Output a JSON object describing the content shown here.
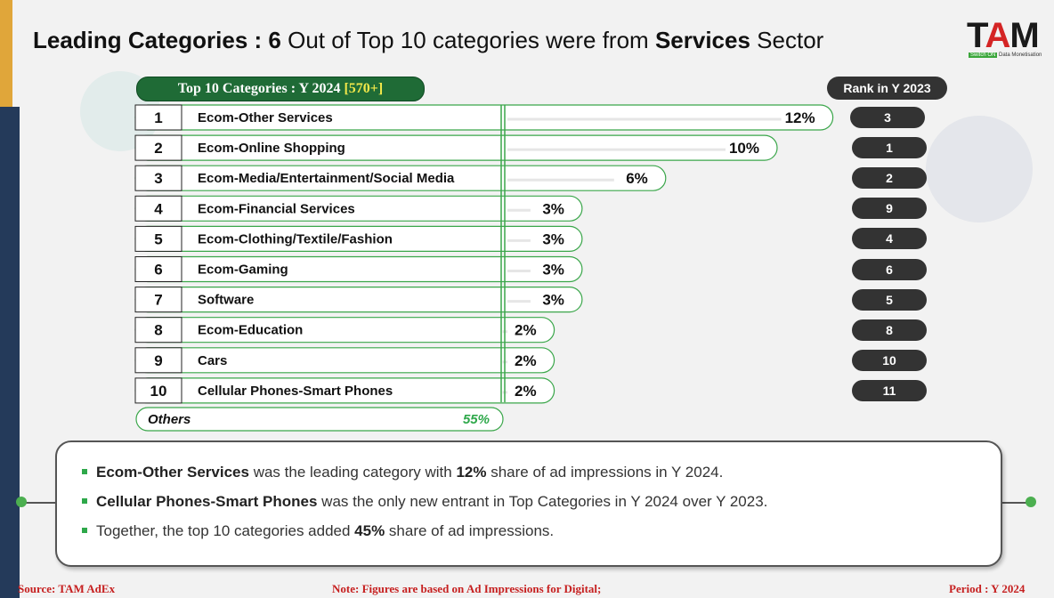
{
  "header": {
    "title_bold": "Leading Categories :",
    "title_num": "6",
    "title_mid": "Out of Top 10 categories were from",
    "title_bold2": "Services",
    "title_end": "Sector"
  },
  "logo": {
    "text_t": "T",
    "text_a": "A",
    "text_m": "M",
    "sub_prefix": "Switch ON",
    "sub_suffix": "Data Monetisation"
  },
  "list_header": {
    "label": "Top 10 Categories : Y 2024",
    "bracket": "[570+]"
  },
  "rank_header": "Rank in Y 2023",
  "chart_data": {
    "type": "bar",
    "categories": [
      "Ecom-Other Services",
      "Ecom-Online Shopping",
      "Ecom-Media/Entertainment/Social Media",
      "Ecom-Financial Services",
      "Ecom-Clothing/Textile/Fashion",
      "Ecom-Gaming",
      "Software",
      "Ecom-Education",
      "Cars",
      "Cellular Phones-Smart Phones"
    ],
    "ranks": [
      "1",
      "2",
      "3",
      "4",
      "5",
      "6",
      "7",
      "8",
      "9",
      "10"
    ],
    "values": [
      12,
      10,
      6,
      3,
      3,
      3,
      3,
      2,
      2,
      2
    ],
    "value_labels": [
      "12%",
      "10%",
      "6%",
      "3%",
      "3%",
      "3%",
      "3%",
      "2%",
      "2%",
      "2%"
    ],
    "rank_2023": [
      "3",
      "1",
      "2",
      "9",
      "4",
      "6",
      "5",
      "8",
      "10",
      "11"
    ],
    "others": {
      "label": "Others",
      "value": 55,
      "value_label": "55%"
    }
  },
  "notes": [
    {
      "bold": "Ecom-Other Services",
      "text1": " was the leading category with ",
      "bold2": "12%",
      "text2": " share of ad impressions in Y 2024."
    },
    {
      "bold": "Cellular Phones-Smart Phones",
      "text1": " was the only new entrant in Top Categories in Y 2024 over Y 2023.",
      "bold2": "",
      "text2": ""
    },
    {
      "bold": "",
      "text1": "Together, the top 10 categories added ",
      "bold2": "45%",
      "text2": " share of ad impressions."
    }
  ],
  "footer": {
    "source": "Source: TAM AdEx",
    "note": "Note: Figures are based on Ad Impressions for Digital;",
    "period": "Period : Y 2024"
  },
  "colors": {
    "green": "#1f6b36",
    "accent_green": "#2ea84a",
    "dark": "#333333",
    "red": "#c62020"
  }
}
